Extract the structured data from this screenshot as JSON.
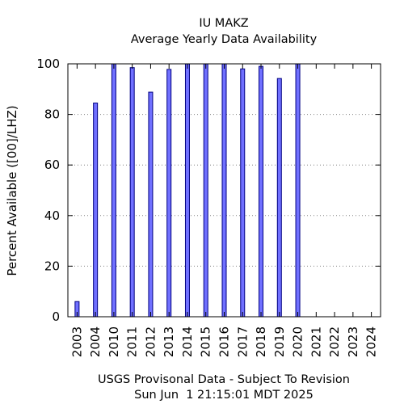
{
  "chart_data": {
    "type": "bar",
    "title": "IU MAKZ",
    "subtitle": "Average Yearly Data Availability",
    "ylabel": "Percent Available ([00]/LHZ)",
    "xlabel": "",
    "ylim": [
      0,
      100
    ],
    "yticks": [
      0,
      20,
      40,
      60,
      80,
      100
    ],
    "grid": "horizontal-dotted",
    "bar_color": "#7070ff",
    "bar_edge_color": "#000080",
    "categories": [
      "2003",
      "2004",
      "2010",
      "2011",
      "2012",
      "2013",
      "2014",
      "2015",
      "2016",
      "2017",
      "2018",
      "2019",
      "2020",
      "2021",
      "2022",
      "2023",
      "2024"
    ],
    "values": [
      6,
      84.5,
      100,
      98.5,
      88.8,
      97.8,
      100,
      100,
      100,
      98,
      99,
      94.2,
      100,
      0,
      0,
      0,
      0
    ]
  },
  "footer": {
    "line1": "USGS Provisonal Data - Subject To Revision",
    "line2": "Sun Jun  1 21:15:01 MDT 2025"
  }
}
